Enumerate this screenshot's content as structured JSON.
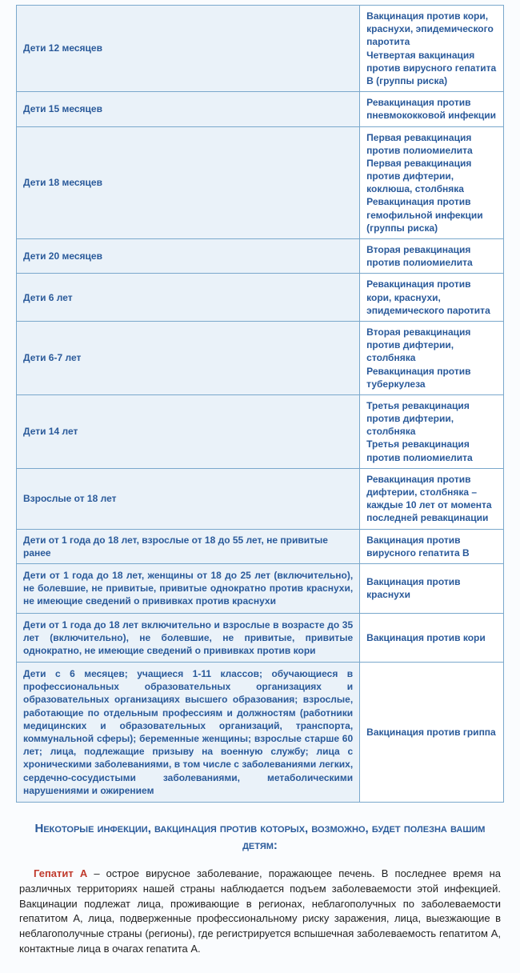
{
  "colors": {
    "primary_text": "#2a5a9a",
    "border": "#7aa8cc",
    "header_bg": "#eaf2f9",
    "cell_bg": "#ffffff",
    "body_text": "#222",
    "term_red": "#c0392b",
    "page_bg": "#fafcfe"
  },
  "fontsize": {
    "table": 12,
    "heading": 15,
    "paragraph": 13
  },
  "table_top": {
    "rows": [
      {
        "age": "Дети 12 месяцев",
        "vax": "Вакцинация против кори, краснухи, эпидемического паротита\nЧетвертая вакцинация против вирусного гепатита B (группы риска)"
      },
      {
        "age": "Дети 15 месяцев",
        "vax": "Ревакцинация против пневмококковой инфекции"
      },
      {
        "age": "Дети 18 месяцев",
        "vax": "Первая ревакцинация против полиомиелита\nПервая ревакцинация против дифтерии, коклюша, столбняка\nРевакцинация против гемофильной инфекции (группы риска)"
      },
      {
        "age": "Дети 20 месяцев",
        "vax": "Вторая ревакцинация против полиомиелита"
      },
      {
        "age": "Дети 6 лет",
        "vax": "Ревакцинация против кори, краснухи, эпидемического паротита"
      },
      {
        "age": "Дети 6-7 лет",
        "vax": "Вторая ревакцинация против дифтерии, столбняка\nРевакцинация против туберкулеза"
      },
      {
        "age": "Дети 14 лет",
        "vax": "Третья ревакцинация против дифтерии, столбняка\nТретья ревакцинация против полиомиелита"
      },
      {
        "age": "Взрослые от 18 лет",
        "vax": "Ревакцинация против дифтерии, столбняка – каждые 10 лет от момента последней ревакцинации"
      },
      {
        "age": "Дети от 1 года до 18 лет, взрослые от 18 до 55 лет, не привитые ранее",
        "vax": "Вакцинация против вирусного гепатита B"
      }
    ]
  },
  "table_bottom": {
    "rows": [
      {
        "group": "Дети от 1 года до 18 лет, женщины от 18 до 25 лет (включительно), не болевшие, не привитые, привитые однократно против краснухи, не имеющие сведений о прививках против краснухи",
        "vax": "Вакцинация против краснухи"
      },
      {
        "group": "Дети от 1 года до 18 лет включительно и взрослые в возрасте до 35 лет (включительно), не болевшие, не привитые, привитые однократно, не имеющие сведений о прививках против кори",
        "vax": "Вакцинация против кори"
      },
      {
        "group": "Дети с 6 месяцев; учащиеся 1-11 классов; обучающиеся в профессиональных образовательных организациях и образовательных организациях высшего образования; взрослые, работающие по отдельным профессиям и должностям (работники медицинских и образовательных организаций, транспорта, коммунальной сферы); беременные женщины; взрослые старше 60 лет; лица, подлежащие призыву на военную службу; лица с хроническими заболеваниями, в том числе с заболеваниями легких, сердечно-сосудистыми заболеваниями, метаболическими нарушениями и ожирением",
        "vax": "Вакцинация против гриппа"
      }
    ]
  },
  "heading": "Некоторые инфекции, вакцинация против которых, возможно, будет полезна вашим детям:",
  "paragraph": {
    "term": "Гепатит A",
    "text": " – острое вирусное заболевание, поражающее печень. В последнее время на различных территориях нашей страны наблюдается подъем заболеваемости этой инфекцией. Вакцинации подлежат лица, проживающие в регионах, неблагополучных по заболеваемости гепатитом A, лица, подверженные профессиональному риску заражения, лица, выезжающие в неблагополучные страны (регионы), где регистрируется вспышечная заболеваемость гепатитом A, контактные лица в очагах гепатита A."
  }
}
